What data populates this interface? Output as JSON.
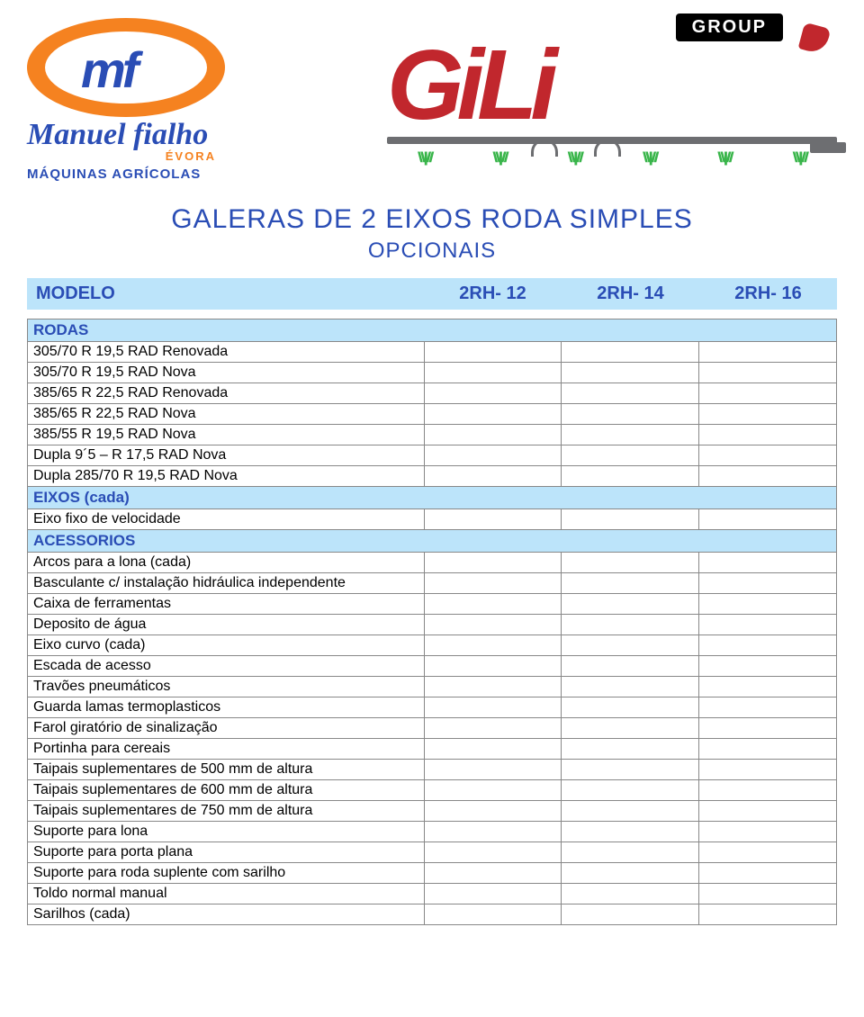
{
  "logos": {
    "mf_letters": "mf",
    "mf_name": "Manuel fialho",
    "mf_evora": "ÉVORA",
    "mf_tagline": "MÁQUINAS AGRÍCOLAS",
    "gili_banner": "GROUP",
    "gili_text": "GiLi"
  },
  "title": {
    "main": "GALERAS DE 2 EIXOS RODA SIMPLES",
    "sub": "OPCIONAIS"
  },
  "model": {
    "label": "MODELO",
    "cols": [
      "2RH- 12",
      "2RH- 14",
      "2RH- 16"
    ]
  },
  "sections": [
    {
      "header": "RODAS",
      "rows": [
        "305/70 R 19,5 RAD Renovada",
        "305/70 R 19,5 RAD Nova",
        "385/65 R 22,5 RAD Renovada",
        "385/65 R 22,5 RAD Nova",
        "385/55 R 19,5 RAD Nova",
        "Dupla 9´5 – R 17,5 RAD Nova",
        "Dupla 285/70 R 19,5 RAD Nova"
      ]
    },
    {
      "header": "EIXOS (cada)",
      "rows": [
        "Eixo fixo de velocidade"
      ]
    },
    {
      "header": "ACESSORIOS",
      "rows": [
        "Arcos para a lona (cada)",
        "Basculante c/ instalação hidráulica independente",
        "Caixa de ferramentas",
        "Deposito de água",
        "Eixo curvo (cada)",
        "Escada de acesso",
        "Travões pneumáticos",
        "Guarda lamas termoplasticos",
        "Farol giratório de sinalização",
        "Portinha para cereais",
        "Taipais suplementares de 500 mm de altura",
        "Taipais suplementares de 600 mm de altura",
        "Taipais suplementares de 750 mm de altura",
        "Suporte para lona",
        "Suporte para porta plana",
        "Suporte para roda suplente com sarilho",
        "Toldo normal manual",
        "Sarilhos (cada)"
      ]
    }
  ],
  "colors": {
    "brand_blue": "#2a4db5",
    "brand_orange": "#f58220",
    "gili_red": "#c1272d",
    "header_bg": "#bce4fa",
    "border": "#888888"
  }
}
